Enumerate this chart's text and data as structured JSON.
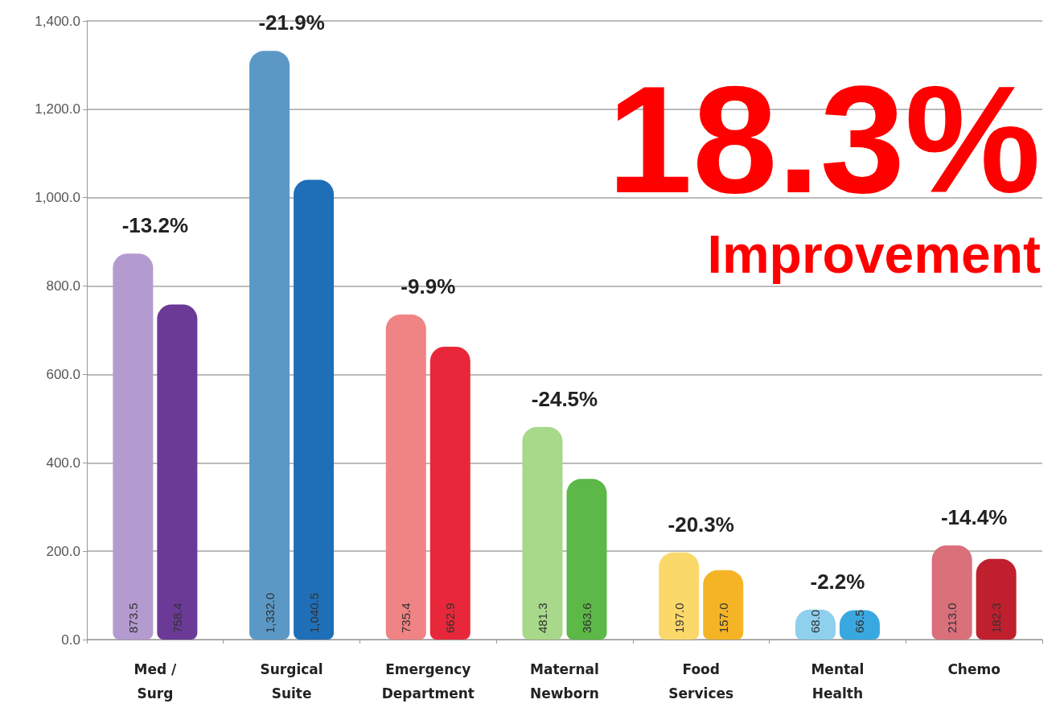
{
  "chart_data": {
    "type": "bar",
    "categories": [
      "Med /\nSurg",
      "Surgical\nSuite",
      "Emergency\nDepartment",
      "Maternal\nNewborn",
      "Food\nServices",
      "Mental\nHealth",
      "Chemo"
    ],
    "series": [
      {
        "colors": [
          "#b39bd0",
          "#5b98c6",
          "#f08384",
          "#a8d88a",
          "#fbd86a",
          "#8fd0ee",
          "#d9707a"
        ],
        "values": [
          873.5,
          1332.0,
          735.4,
          481.3,
          197.0,
          68.0,
          213.0
        ],
        "value_labels": [
          "873.5",
          "1,332.0",
          "735.4",
          "481.3",
          "197.0",
          "68.0",
          "213.0"
        ]
      },
      {
        "colors": [
          "#6b3a96",
          "#1f6fb8",
          "#e8283a",
          "#5cb847",
          "#f4b426",
          "#3aa8e0",
          "#c0202e"
        ],
        "values": [
          758.4,
          1040.5,
          662.9,
          363.6,
          157.0,
          66.5,
          182.3
        ],
        "value_labels": [
          "758.4",
          "1,040.5",
          "662.9",
          "363.6",
          "157.0",
          "66.5",
          "182.3"
        ]
      }
    ],
    "ylim": [
      0,
      1400
    ],
    "yticks": [
      {
        "value": 0,
        "label": "0.0"
      },
      {
        "value": 200,
        "label": "200.0"
      },
      {
        "value": 400,
        "label": "400.0"
      },
      {
        "value": 600,
        "label": "600.0"
      },
      {
        "value": 800,
        "label": "800.0"
      },
      {
        "value": 1000,
        "label": "1,000.0"
      },
      {
        "value": 1200,
        "label": "1,200.0"
      },
      {
        "value": 1400,
        "label": "1,400.0"
      }
    ],
    "grid": "y",
    "annotations": [
      "-13.2%",
      "-21.9%",
      "-9.9%",
      "-24.5%",
      "-20.3%",
      "-2.2%",
      "-14.4%",
      "18.3%",
      "Improvement"
    ]
  }
}
